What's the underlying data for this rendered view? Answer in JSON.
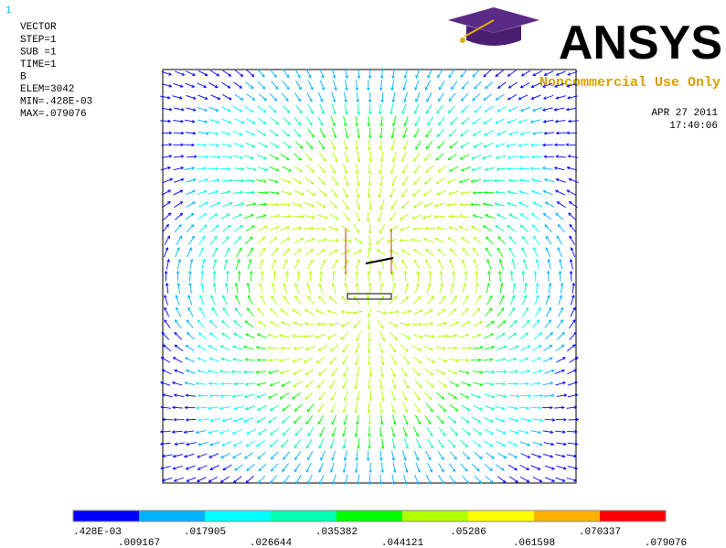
{
  "window_number": "1",
  "header": [
    "VECTOR",
    "STEP=1",
    "SUB =1",
    "TIME=1",
    "B",
    "ELEM=3042",
    "MIN=.428E-03",
    "MAX=.079076"
  ],
  "logo": {
    "name": "ANSYS",
    "notice": "Noncommercial Use Only"
  },
  "date": "APR 27 2011",
  "time": "17:40:06",
  "legend": {
    "colors": [
      "#0000ff",
      "#00b2ff",
      "#00ffff",
      "#00ffb2",
      "#00ff00",
      "#b2ff00",
      "#ffff00",
      "#ffb200",
      "#ff0000"
    ],
    "labels": [
      ".428E-03",
      ".009167",
      ".017905",
      ".026644",
      ".035382",
      ".044121",
      ".05286",
      ".061598",
      ".070337",
      ".079076"
    ]
  }
}
